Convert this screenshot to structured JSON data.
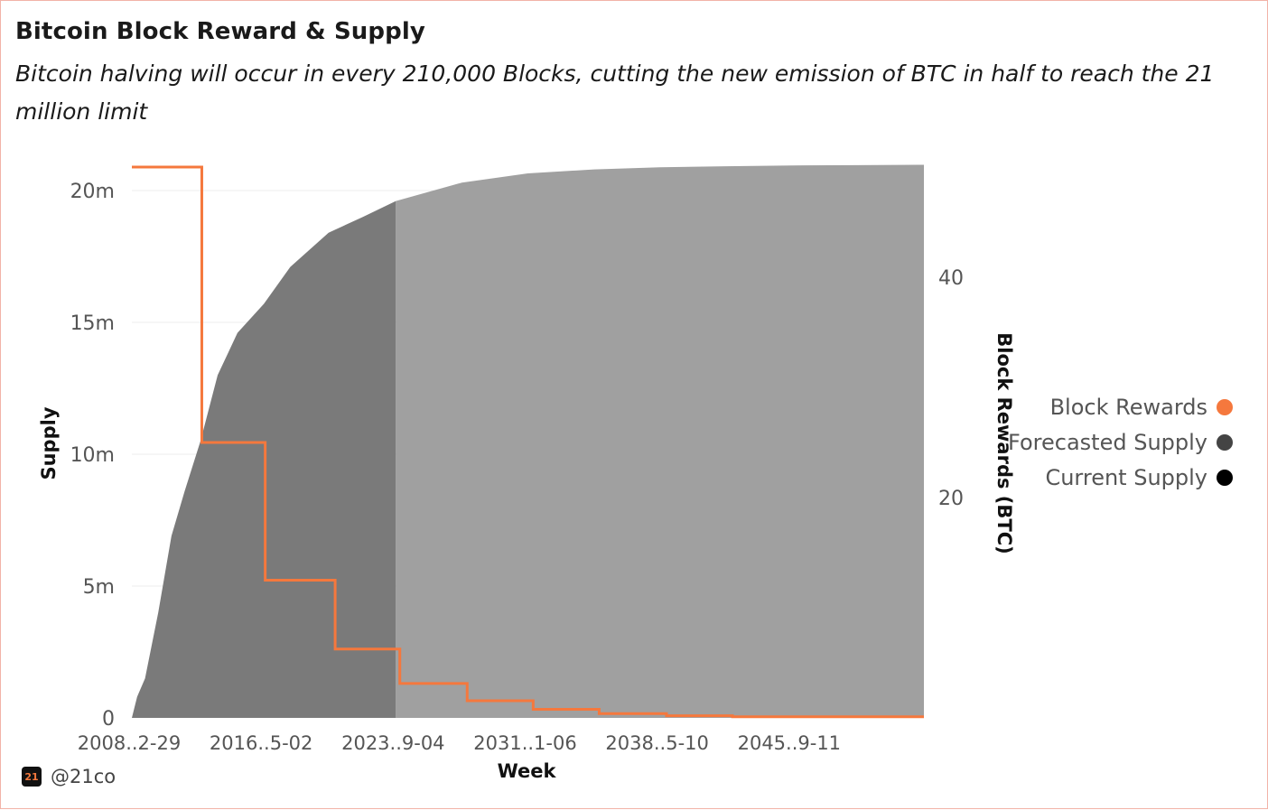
{
  "title": "Bitcoin Block Reward & Supply",
  "subtitle": "Bitcoin halving will occur in every 210,000 Blocks, cutting the new emission of BTC in half to reach the 21 million limit",
  "brand": {
    "logo_text": "21",
    "handle": "@21co"
  },
  "legend": [
    {
      "label": "Block Rewards",
      "color": "#f5783d"
    },
    {
      "label": "Forecasted Supply",
      "color": "#444444"
    },
    {
      "label": "Current Supply",
      "color": "#000000"
    }
  ],
  "colors": {
    "reward_line": "#f5783d",
    "current_supply_fill": "#7a7a7a",
    "forecast_supply_fill": "#a0a0a0",
    "gridline": "#eeeeee",
    "axis_text": "#555555"
  },
  "chart_data": {
    "type": "area",
    "title": "Bitcoin Block Reward & Supply",
    "xlabel": "Week",
    "ylabel": "Supply",
    "y2label": "Block Rewards (BTC)",
    "xlim": [
      2009.0,
      2069.0
    ],
    "ylim": [
      0,
      21000000
    ],
    "y2lim": [
      0,
      50
    ],
    "x_ticks": [
      {
        "value": 2009.0,
        "label": "2008..2-29"
      },
      {
        "value": 2019.0,
        "label": "2016..5-02"
      },
      {
        "value": 2029.0,
        "label": "2023..9-04"
      },
      {
        "value": 2039.0,
        "label": "2031..1-06"
      },
      {
        "value": 2049.0,
        "label": "2038..5-10"
      },
      {
        "value": 2059.0,
        "label": "2045..9-11"
      }
    ],
    "y_ticks": [
      {
        "value": 0,
        "label": "0"
      },
      {
        "value": 5000000,
        "label": "5m"
      },
      {
        "value": 10000000,
        "label": "10m"
      },
      {
        "value": 15000000,
        "label": "15m"
      },
      {
        "value": 20000000,
        "label": "20m"
      }
    ],
    "y2_ticks": [
      {
        "value": 20,
        "label": "20"
      },
      {
        "value": 40,
        "label": "40"
      }
    ],
    "current_date": 2029.0,
    "series": [
      {
        "name": "Current Supply",
        "type": "area",
        "x": [
          2009.0,
          2009.4,
          2010.0,
          2011.0,
          2012.0,
          2013.0,
          2014.2,
          2015.5,
          2017.0,
          2019.0,
          2021.0,
          2023.9,
          2026.5,
          2029.0
        ],
        "values": [
          0,
          800000,
          1500000,
          4000000,
          6900000,
          8600000,
          10500000,
          13000000,
          14600000,
          15700000,
          17100000,
          18400000,
          19000000,
          19600000
        ]
      },
      {
        "name": "Forecasted Supply",
        "type": "area",
        "x": [
          2029.0,
          2034.0,
          2039.0,
          2044.0,
          2049.0,
          2054.0,
          2059.0,
          2064.0,
          2069.0
        ],
        "values": [
          19600000,
          20300000,
          20650000,
          20800000,
          20880000,
          20920000,
          20950000,
          20965000,
          20975000
        ]
      },
      {
        "name": "Block Rewards",
        "type": "step",
        "x": [
          2009.0,
          2014.3,
          2019.1,
          2024.4,
          2029.3,
          2034.4,
          2039.4,
          2044.4,
          2049.5,
          2054.5,
          2069.0
        ],
        "values": [
          50,
          25,
          12.5,
          6.25,
          3.125,
          1.5625,
          0.78125,
          0.390625,
          0.1953125,
          0.09765625,
          0.09765625
        ]
      }
    ]
  }
}
